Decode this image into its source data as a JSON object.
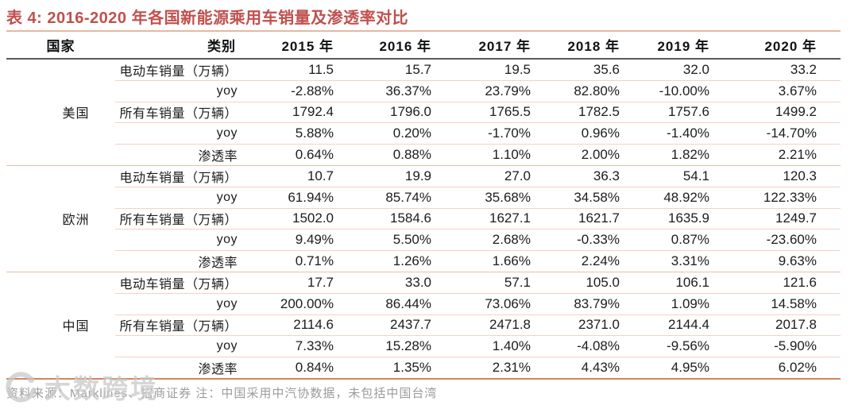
{
  "title": "表 4:  2016-2020 年各国新能源乘用车销量及渗透率对比",
  "chart_data": {
    "type": "table",
    "title": "2016-2020 年各国新能源乘用车销量及渗透率对比",
    "columns": [
      "国家",
      "类别",
      "2015 年",
      "2016 年",
      "2017 年",
      "2018 年",
      "2019 年",
      "2020 年"
    ],
    "groups": [
      {
        "country": "美国",
        "rows": [
          {
            "label": "电动车销量（万辆）",
            "values": [
              "11.5",
              "15.7",
              "19.5",
              "35.6",
              "32.0",
              "33.2"
            ]
          },
          {
            "label": "yoy",
            "values": [
              "-2.88%",
              "36.37%",
              "23.79%",
              "82.80%",
              "-10.00%",
              "3.67%"
            ]
          },
          {
            "label": "所有车销量（万辆）",
            "values": [
              "1792.4",
              "1796.0",
              "1765.5",
              "1782.5",
              "1757.6",
              "1499.2"
            ]
          },
          {
            "label": "yoy",
            "values": [
              "5.88%",
              "0.20%",
              "-1.70%",
              "0.96%",
              "-1.40%",
              "-14.70%"
            ]
          },
          {
            "label": "渗透率",
            "values": [
              "0.64%",
              "0.88%",
              "1.10%",
              "2.00%",
              "1.82%",
              "2.21%"
            ]
          }
        ]
      },
      {
        "country": "欧洲",
        "rows": [
          {
            "label": "电动车销量（万辆）",
            "values": [
              "10.7",
              "19.9",
              "27.0",
              "36.3",
              "54.1",
              "120.3"
            ]
          },
          {
            "label": "yoy",
            "values": [
              "61.94%",
              "85.74%",
              "35.68%",
              "34.58%",
              "48.92%",
              "122.33%"
            ]
          },
          {
            "label": "所有车销量（万辆）",
            "values": [
              "1502.0",
              "1584.6",
              "1627.1",
              "1621.7",
              "1635.9",
              "1249.7"
            ]
          },
          {
            "label": "yoy",
            "values": [
              "9.49%",
              "5.50%",
              "2.68%",
              "-0.33%",
              "0.87%",
              "-23.60%"
            ]
          },
          {
            "label": "渗透率",
            "values": [
              "0.71%",
              "1.26%",
              "1.66%",
              "2.24%",
              "3.31%",
              "9.63%"
            ]
          }
        ]
      },
      {
        "country": "中国",
        "rows": [
          {
            "label": "电动车销量（万辆）",
            "values": [
              "17.7",
              "33.0",
              "57.1",
              "105.0",
              "106.1",
              "121.6"
            ]
          },
          {
            "label": "yoy",
            "values": [
              "200.00%",
              "86.44%",
              "73.06%",
              "83.79%",
              "1.09%",
              "14.58%"
            ]
          },
          {
            "label": "所有车销量（万辆）",
            "values": [
              "2114.6",
              "2437.7",
              "2471.8",
              "2371.0",
              "2144.4",
              "2017.8"
            ]
          },
          {
            "label": "yoy",
            "values": [
              "7.33%",
              "15.28%",
              "1.40%",
              "-4.08%",
              "-9.56%",
              "-5.90%"
            ]
          },
          {
            "label": "渗透率",
            "values": [
              "0.84%",
              "1.35%",
              "2.31%",
              "4.43%",
              "4.95%",
              "6.02%"
            ]
          }
        ]
      }
    ],
    "layout": {
      "grid": "horizontal-rules-only",
      "legend": "none"
    }
  },
  "footer": {
    "source_note": "资料来源：Marklines、招商证券  注：中国采用中汽协数据，未包括中国台湾"
  },
  "watermark": {
    "text": "大数跨境"
  },
  "colors": {
    "title_accent": "#C0504D",
    "row_line": "#F1D3C2",
    "block_line": "#E8BFA9",
    "top_line": "#E5B8A0",
    "bottom_line": "#D08560",
    "header_rule": "#595959",
    "body_text": "#1c1c1c",
    "footer_text": "#9B9B9B",
    "watermark_gray": "#c7c7c7"
  }
}
